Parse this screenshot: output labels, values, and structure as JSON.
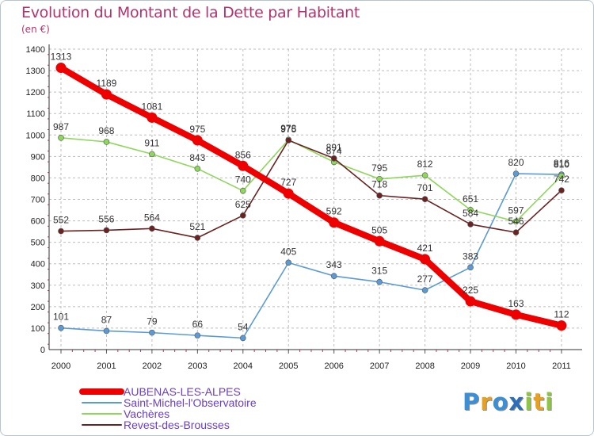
{
  "title": "Evolution du Montant de la Dette par Habitant",
  "subtitle": "(en €)",
  "logo": {
    "letters": [
      "P",
      "r",
      "o",
      "x",
      "i",
      "t",
      "i"
    ],
    "colors": [
      "#3a8fd6",
      "#e8a020",
      "#3a8fd6",
      "#2c6fb8",
      "#8ec641",
      "#e8a020",
      "#8ec641"
    ]
  },
  "chart_data": {
    "type": "line",
    "title": "Evolution du Montant de la Dette par Habitant",
    "ylabel": "(en €)",
    "xlabel": "",
    "x": [
      2000,
      2001,
      2002,
      2003,
      2004,
      2005,
      2006,
      2007,
      2008,
      2009,
      2010,
      2011
    ],
    "ylim": [
      0,
      1400
    ],
    "yticks": [
      0,
      100,
      200,
      300,
      400,
      500,
      600,
      700,
      800,
      900,
      1000,
      1100,
      1200,
      1300,
      1400
    ],
    "grid": true,
    "legend": "bottom-left",
    "series": [
      {
        "name": "AUBENAS-LES-ALPES",
        "color": "#ee0000",
        "values": [
          1313,
          1189,
          1081,
          975,
          856,
          727,
          592,
          505,
          421,
          225,
          163,
          112
        ]
      },
      {
        "name": "Saint-Michel-l'Observatoire",
        "color": "#5b9bd5",
        "values": [
          101,
          87,
          79,
          66,
          54,
          405,
          343,
          315,
          277,
          383,
          820,
          816
        ]
      },
      {
        "name": "Vachères",
        "color": "#8ed65c",
        "values": [
          987,
          968,
          911,
          843,
          740,
          978,
          874,
          795,
          812,
          651,
          597,
          810
        ]
      },
      {
        "name": "Revest-des-Brousses",
        "color": "#6b2222",
        "values": [
          552,
          556,
          564,
          521,
          625,
          975,
          891,
          718,
          701,
          584,
          546,
          742
        ]
      }
    ]
  }
}
